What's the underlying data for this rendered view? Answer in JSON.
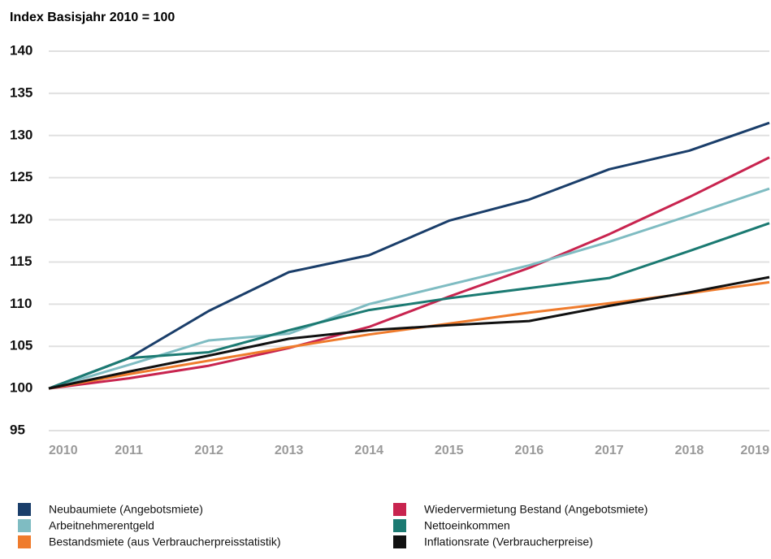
{
  "chart_data": {
    "type": "line",
    "y_axis_label": "Index Basisjahr 2010 = 100",
    "x": [
      2010,
      2011,
      2012,
      2013,
      2014,
      2015,
      2016,
      2017,
      2018,
      2019
    ],
    "xlim": [
      2010,
      2019
    ],
    "xticks": [
      2010,
      2011,
      2012,
      2013,
      2014,
      2015,
      2016,
      2017,
      2018,
      2019
    ],
    "ylim": [
      95,
      140
    ],
    "yticks": [
      95,
      100,
      105,
      110,
      115,
      120,
      125,
      130,
      135,
      140
    ],
    "grid": true,
    "legend_position": "bottom",
    "series": [
      {
        "name": "Neubaumiete (Angebotsmiete)",
        "color": "#1a3e6a",
        "values": [
          100,
          103.6,
          109.2,
          113.8,
          115.8,
          119.9,
          122.4,
          126.0,
          128.2,
          131.5
        ]
      },
      {
        "name": "Wiedervermietung Bestand (Angebotsmiete)",
        "color": "#c8244f",
        "values": [
          100,
          101.2,
          102.7,
          104.8,
          107.3,
          110.9,
          114.3,
          118.3,
          122.7,
          127.4
        ]
      },
      {
        "name": "Arbeitnehmerentgeld",
        "color": "#7fbcc2",
        "values": [
          100,
          102.8,
          105.7,
          106.5,
          110.0,
          112.3,
          114.6,
          117.4,
          120.5,
          123.7
        ]
      },
      {
        "name": "Nettoeinkommen",
        "color": "#1b7a72",
        "values": [
          100,
          103.6,
          104.3,
          106.9,
          109.3,
          110.7,
          111.9,
          113.1,
          116.3,
          119.6
        ]
      },
      {
        "name": "Bestandsmiete (aus Verbraucherpreisstatistik)",
        "color": "#ef7b2c",
        "values": [
          100,
          101.7,
          103.3,
          104.9,
          106.4,
          107.7,
          109.0,
          110.1,
          111.3,
          112.6
        ]
      },
      {
        "name": "Inflationsrate (Verbraucherpreise)",
        "color": "#111111",
        "values": [
          100,
          102.0,
          103.9,
          105.9,
          106.9,
          107.5,
          108.0,
          109.8,
          111.4,
          113.2
        ]
      }
    ]
  }
}
